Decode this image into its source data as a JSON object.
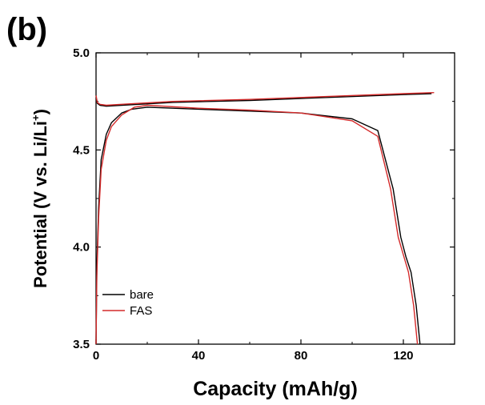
{
  "panel_label": "(b)",
  "chart_data": {
    "type": "line",
    "xlabel": "Capacity (mAh/g)",
    "ylabel": {
      "text": "Potential (V vs. Li/Li",
      "superscript": "+",
      "close": ")"
    },
    "xlim": [
      0,
      140
    ],
    "ylim": [
      3.5,
      5.0
    ],
    "xticks": [
      0,
      40,
      80,
      120
    ],
    "yticks": [
      3.5,
      4.0,
      4.5,
      5.0
    ],
    "xtick_labels": [
      "0",
      "40",
      "80",
      "120"
    ],
    "ytick_labels": [
      "3.5",
      "4.0",
      "4.5",
      "5.0"
    ],
    "grid": false,
    "legend_position": "bottom-left",
    "series": [
      {
        "name": "bare",
        "color": "#000000",
        "segments": [
          {
            "x": [
              0,
              0.3,
              1,
              2,
              4,
              6,
              10,
              14,
              20,
              40,
              60,
              80,
              100,
              110,
              116,
              119,
              121,
              123,
              125,
              126.5
            ],
            "y": [
              3.5,
              3.9,
              4.2,
              4.45,
              4.58,
              4.64,
              4.69,
              4.71,
              4.72,
              4.71,
              4.7,
              4.69,
              4.66,
              4.6,
              4.3,
              4.05,
              3.95,
              3.87,
              3.7,
              3.5
            ]
          },
          {
            "x": [
              0,
              0.5,
              1.5,
              4,
              10,
              30,
              60,
              90,
              120,
              131
            ],
            "y": [
              4.77,
              4.74,
              4.73,
              4.725,
              4.73,
              4.745,
              4.755,
              4.77,
              4.785,
              4.79
            ]
          }
        ]
      },
      {
        "name": "FAS",
        "color": "#d42a2a",
        "segments": [
          {
            "x": [
              0,
              0.3,
              1,
              2,
              4,
              6,
              10,
              15,
              20,
              40,
              60,
              80,
              100,
              110,
              115,
              118,
              120,
              122,
              124,
              125.5
            ],
            "y": [
              3.5,
              3.85,
              4.15,
              4.4,
              4.55,
              4.62,
              4.68,
              4.72,
              4.73,
              4.715,
              4.705,
              4.69,
              4.65,
              4.57,
              4.3,
              4.05,
              3.96,
              3.87,
              3.7,
              3.5
            ]
          },
          {
            "x": [
              0,
              0.5,
              1.5,
              4,
              10,
              30,
              60,
              90,
              120,
              132
            ],
            "y": [
              4.78,
              4.745,
              4.735,
              4.73,
              4.735,
              4.75,
              4.76,
              4.775,
              4.79,
              4.795
            ]
          }
        ]
      }
    ]
  }
}
